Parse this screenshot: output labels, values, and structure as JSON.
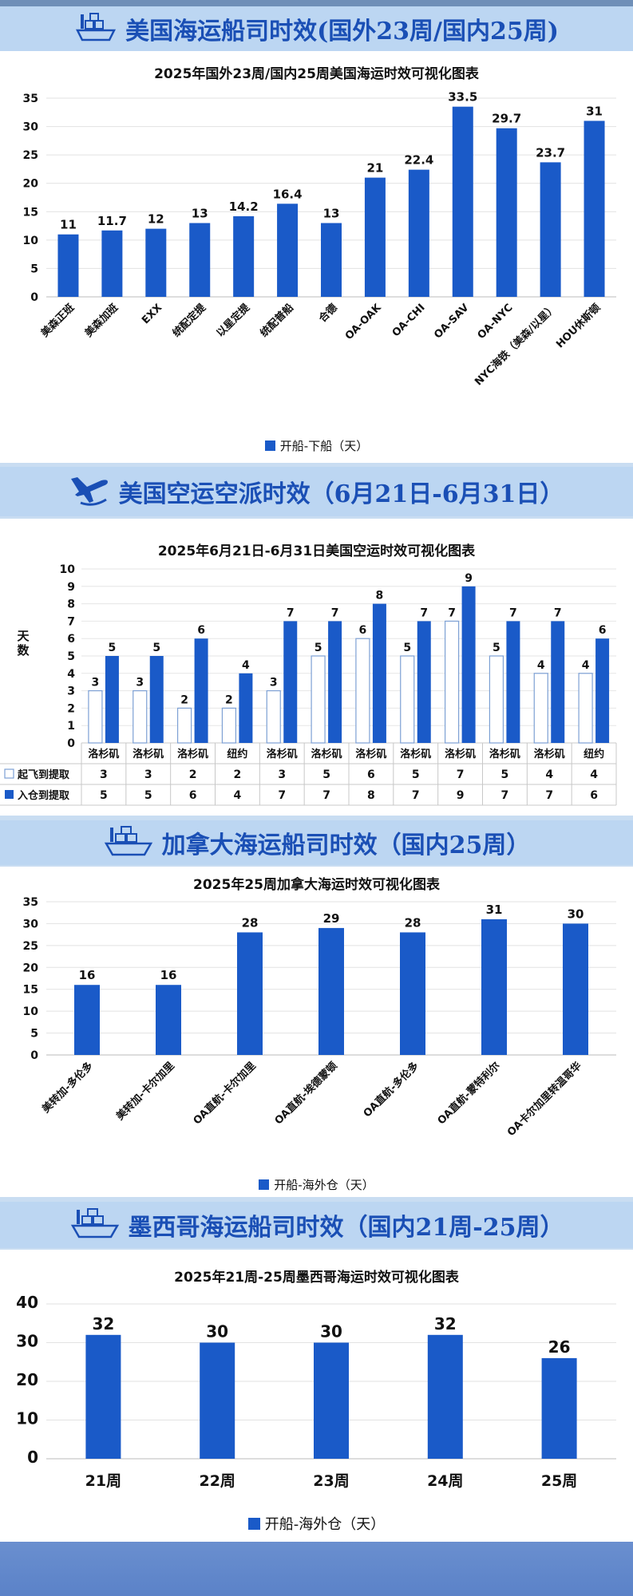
{
  "sections": {
    "us_sea": {
      "header": "美国海运船司时效(国外23周/国内25周)",
      "legend": "开船-下船（天）"
    },
    "us_air": {
      "header": "美国空运空派时效（6月21日-6月31日）",
      "ylabel": "天数",
      "row1_label": "起飞到提取",
      "row2_label": "入仓到提取"
    },
    "ca_sea": {
      "header": "加拿大海运船司时效（国内25周）",
      "legend": "开船-海外仓（天）"
    },
    "mx_sea": {
      "header": "墨西哥海运船司时效（国内21周-25周）",
      "legend": "开船-海外仓（天）"
    }
  },
  "colors": {
    "bar": "#1a5ac8",
    "header_bg": "#bcd6f2",
    "header_text": "#1a4fb5",
    "page_bg": "#c9ddf2"
  },
  "chart_data": [
    {
      "type": "bar",
      "title": "2025年国外23周/国内25周美国海运时效可视化图表",
      "categories": [
        "美森正班",
        "美森加班",
        "EXX",
        "统配定提",
        "以星定提",
        "统配普船",
        "合德",
        "OA-OAK",
        "OA-CHI",
        "OA-SAV",
        "OA-NYC",
        "NYC海铁（美森/以星）",
        "HOU休斯顿"
      ],
      "series": [
        {
          "name": "开船-下船（天）",
          "values": [
            11,
            11.7,
            12,
            13,
            14.2,
            16.4,
            13,
            21,
            22.4,
            33.5,
            29.7,
            23.7,
            31
          ]
        }
      ],
      "ylim": [
        0,
        35
      ],
      "yticks": [
        0,
        5,
        10,
        15,
        20,
        25,
        30,
        35
      ]
    },
    {
      "type": "bar",
      "title": "2025年6月21日-6月31日美国空运时效可视化图表",
      "ylabel": "天数",
      "categories": [
        "洛杉矶",
        "洛杉矶",
        "洛杉矶",
        "纽约",
        "洛杉矶",
        "洛杉矶",
        "洛杉矶",
        "洛杉矶",
        "洛杉矶",
        "洛杉矶",
        "洛杉矶",
        "纽约"
      ],
      "series": [
        {
          "name": "起飞到提取",
          "values": [
            3,
            3,
            2,
            2,
            3,
            5,
            6,
            5,
            7,
            5,
            4,
            4
          ]
        },
        {
          "name": "入仓到提取",
          "values": [
            5,
            5,
            6,
            4,
            7,
            7,
            8,
            7,
            9,
            7,
            7,
            6
          ]
        }
      ],
      "ylim": [
        0,
        10
      ],
      "yticks": [
        0,
        1,
        2,
        3,
        4,
        5,
        6,
        7,
        8,
        9,
        10
      ]
    },
    {
      "type": "bar",
      "title": "2025年25周加拿大海运时效可视化图表",
      "categories": [
        "美转加-多伦多",
        "美转加-卡尔加里",
        "OA直航-卡尔加里",
        "OA直航-埃德蒙顿",
        "OA直航-多伦多",
        "OA直航-蒙特利尔",
        "OA卡尔加里转温哥华"
      ],
      "series": [
        {
          "name": "开船-海外仓（天）",
          "values": [
            16,
            16,
            28,
            29,
            28,
            31,
            30
          ]
        }
      ],
      "ylim": [
        0,
        35
      ],
      "yticks": [
        0,
        5,
        10,
        15,
        20,
        25,
        30,
        35
      ]
    },
    {
      "type": "bar",
      "title": "2025年21周-25周墨西哥海运时效可视化图表",
      "categories": [
        "21周",
        "22周",
        "23周",
        "24周",
        "25周"
      ],
      "series": [
        {
          "name": "开船-海外仓（天）",
          "values": [
            32,
            30,
            30,
            32,
            26
          ]
        }
      ],
      "ylim": [
        0,
        40
      ],
      "yticks": [
        0,
        10,
        20,
        30,
        40
      ]
    }
  ]
}
